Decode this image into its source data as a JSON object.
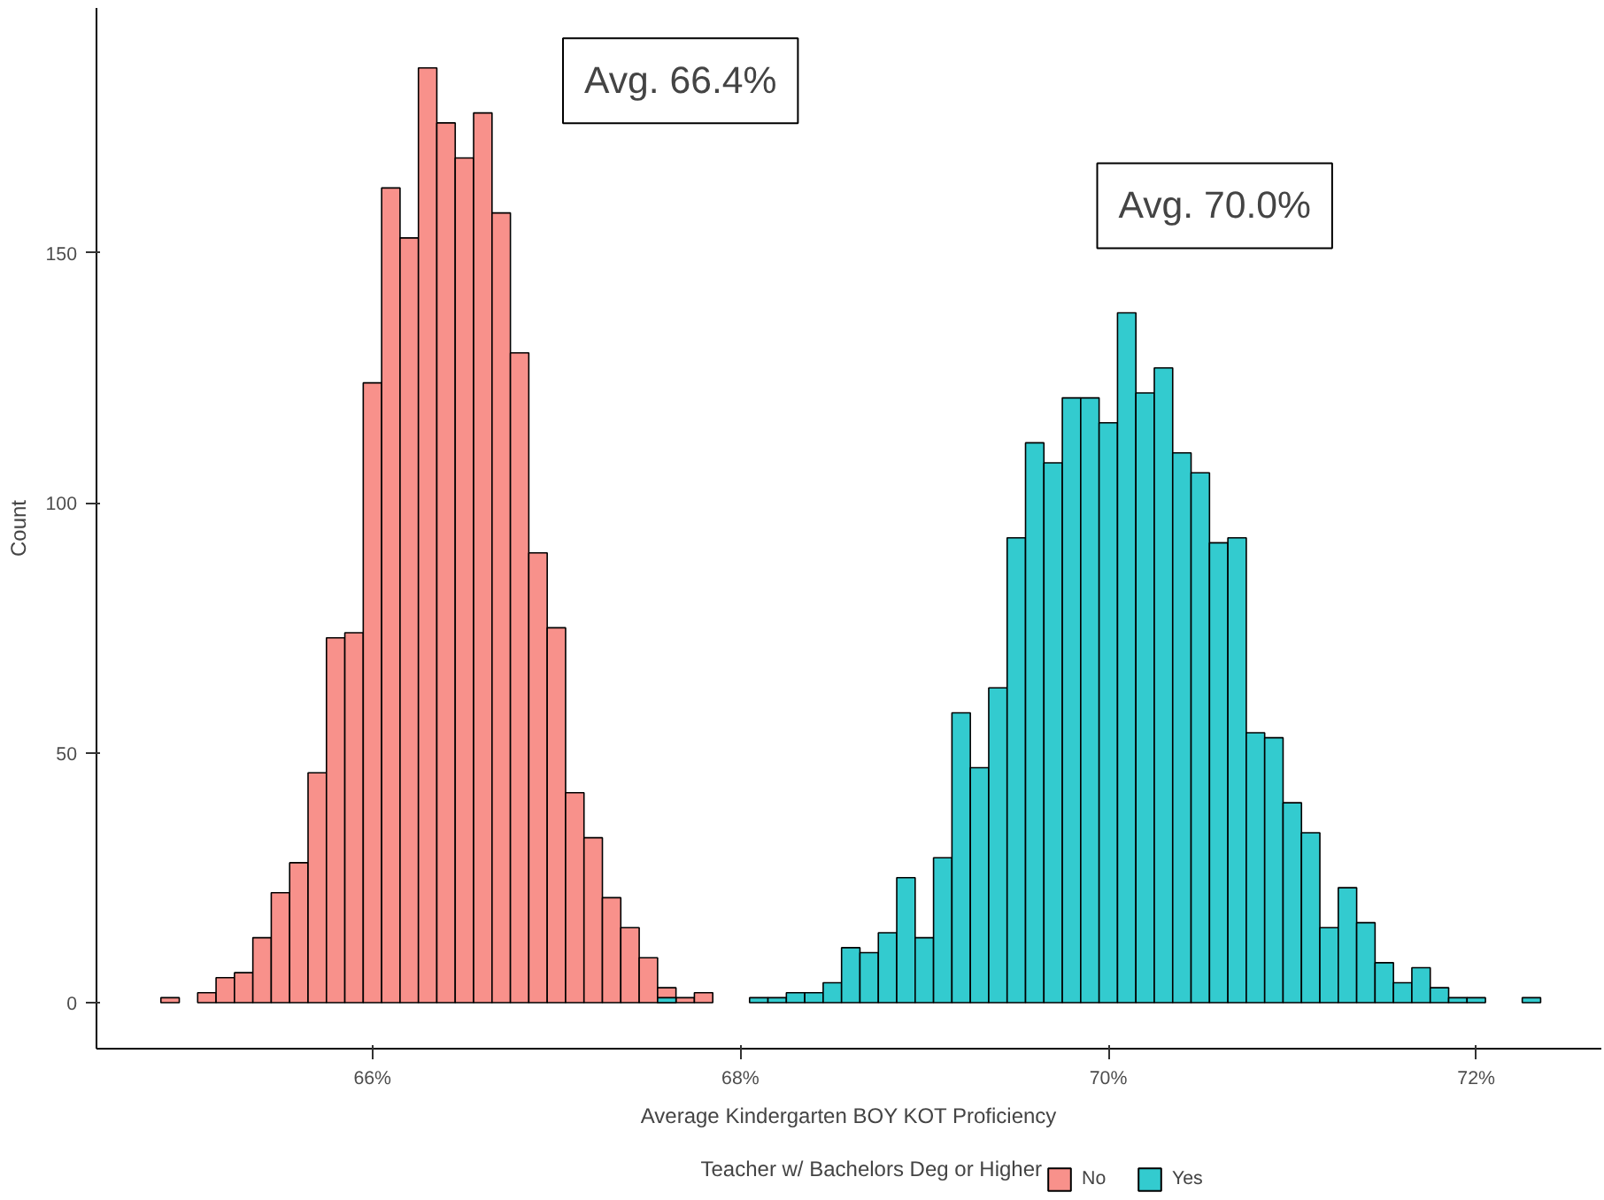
{
  "chart_data": {
    "type": "histogram",
    "xlabel": "Average Kindergarten BOY KOT Proficiency",
    "ylabel": "Count",
    "legend_title": "Teacher w/ Bachelors Deg or Higher",
    "bins": [
      64.85,
      64.95,
      65.05,
      65.15,
      65.25,
      65.35,
      65.45,
      65.55,
      65.65,
      65.75,
      65.85,
      65.95,
      66.05,
      66.15,
      66.25,
      66.35,
      66.45,
      66.55,
      66.65,
      66.75,
      66.85,
      66.95,
      67.05,
      67.15,
      67.25,
      67.35,
      67.45,
      67.55,
      67.65,
      67.75,
      67.85,
      67.95,
      68.05,
      68.15,
      68.25,
      68.35,
      68.45,
      68.55,
      68.65,
      68.75,
      68.85,
      68.95,
      69.05,
      69.15,
      69.25,
      69.35,
      69.45,
      69.55,
      69.65,
      69.75,
      69.85,
      69.95,
      70.05,
      70.15,
      70.25,
      70.35,
      70.45,
      70.55,
      70.65,
      70.75,
      70.85,
      70.95,
      71.05,
      71.15,
      71.25,
      71.35,
      71.45,
      71.55,
      71.65,
      71.75,
      71.85,
      71.95,
      72.05,
      72.15,
      72.25,
      72.35
    ],
    "series": [
      {
        "name": "No",
        "color": "#f8918b",
        "values": [
          1,
          0,
          2,
          5,
          6,
          13,
          22,
          28,
          46,
          73,
          74,
          124,
          163,
          153,
          187,
          176,
          169,
          178,
          158,
          130,
          90,
          75,
          42,
          33,
          21,
          15,
          9,
          3,
          1,
          2,
          0,
          0,
          0,
          0,
          0,
          0,
          0,
          0,
          0,
          0,
          0,
          0,
          0,
          0,
          0,
          0,
          0,
          0,
          0,
          0,
          0,
          0,
          0,
          0,
          0,
          0,
          0,
          0,
          0,
          0,
          0,
          0,
          0,
          0,
          0,
          0,
          0,
          0,
          0,
          0,
          0,
          0,
          0,
          0,
          0
        ]
      },
      {
        "name": "Yes",
        "color": "#33cbcf",
        "values": [
          0,
          0,
          0,
          0,
          0,
          0,
          0,
          0,
          0,
          0,
          0,
          0,
          0,
          0,
          0,
          0,
          0,
          0,
          0,
          0,
          0,
          0,
          0,
          0,
          0,
          0,
          0,
          1,
          0,
          0,
          0,
          0,
          1,
          1,
          2,
          2,
          4,
          11,
          10,
          14,
          25,
          13,
          29,
          58,
          47,
          63,
          93,
          112,
          108,
          121,
          121,
          116,
          138,
          122,
          127,
          110,
          106,
          92,
          93,
          54,
          53,
          40,
          34,
          15,
          23,
          16,
          8,
          4,
          7,
          3,
          1,
          1,
          0,
          0,
          1
        ]
      }
    ],
    "xlim": [
      64.5,
      72.68
    ],
    "ylim": [
      -9.2,
      199
    ],
    "xticks": [
      {
        "value": 66,
        "label": "66%"
      },
      {
        "value": 68,
        "label": "68%"
      },
      {
        "value": 70,
        "label": "70%"
      },
      {
        "value": 72,
        "label": "72%"
      }
    ],
    "yticks": [
      0,
      50,
      100,
      150
    ],
    "annotations": [
      "Avg. 66.4%",
      "Avg. 70.0%"
    ],
    "grid": false,
    "legend": "bottom"
  }
}
